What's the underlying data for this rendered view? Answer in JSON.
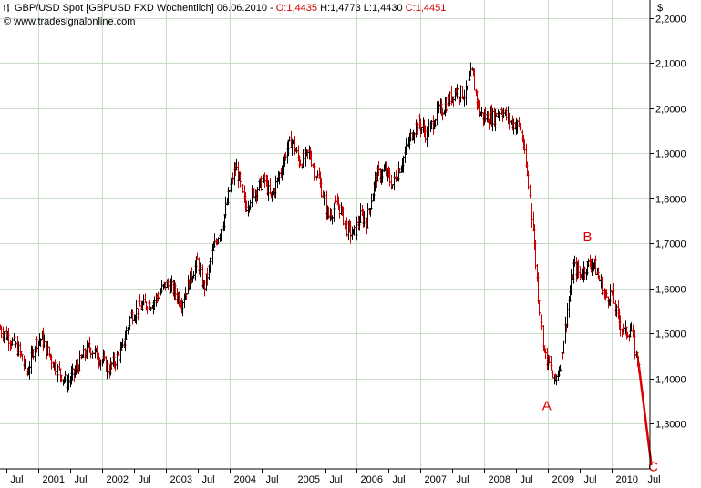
{
  "header": {
    "symbol": "GBP/USD Spot [GBPUSD FXD  Wöchentlich] 06.06.2010 -",
    "open": "O:1,4435",
    "high": "H:1,4773",
    "low": "L:1,4430",
    "close": "C:1,4451",
    "copyright": "© www.tradesignalonline.com"
  },
  "colors": {
    "up": "#000000",
    "down": "#cc0000",
    "grid": "#c8dcc8",
    "annotation": "#e00000",
    "axis": "#000000"
  },
  "chart_data": {
    "type": "ohlc",
    "currency_label": "$",
    "ylim": [
      1.2,
      2.24
    ],
    "yticks": [
      1.3,
      1.4,
      1.5,
      1.6,
      1.7,
      1.8,
      1.9,
      2.0,
      2.1,
      2.2
    ],
    "ytick_labels": [
      "1,3000",
      "1,4000",
      "1,5000",
      "1,6000",
      "1,7000",
      "1,8000",
      "1,9000",
      "2,0000",
      "2,1000",
      "2,2000"
    ],
    "xlim": [
      2000.4,
      2010.6
    ],
    "xticks": [
      {
        "t": 2000.5,
        "label": "Jul"
      },
      {
        "t": 2001.0,
        "label": "2001"
      },
      {
        "t": 2001.5,
        "label": "Jul"
      },
      {
        "t": 2002.0,
        "label": "2002"
      },
      {
        "t": 2002.5,
        "label": "Jul"
      },
      {
        "t": 2003.0,
        "label": "2003"
      },
      {
        "t": 2003.5,
        "label": "Jul"
      },
      {
        "t": 2004.0,
        "label": "2004"
      },
      {
        "t": 2004.5,
        "label": "Jul"
      },
      {
        "t": 2005.0,
        "label": "2005"
      },
      {
        "t": 2005.5,
        "label": "Jul"
      },
      {
        "t": 2006.0,
        "label": "2006"
      },
      {
        "t": 2006.5,
        "label": "Jul"
      },
      {
        "t": 2007.0,
        "label": "2007"
      },
      {
        "t": 2007.5,
        "label": "Jul"
      },
      {
        "t": 2008.0,
        "label": "2008"
      },
      {
        "t": 2008.5,
        "label": "Jul"
      },
      {
        "t": 2009.0,
        "label": "2009"
      },
      {
        "t": 2009.5,
        "label": "Jul"
      },
      {
        "t": 2010.0,
        "label": "2010"
      },
      {
        "t": 2010.5,
        "label": "Jul"
      }
    ],
    "price_path": [
      [
        2000.4,
        1.51
      ],
      [
        2000.55,
        1.49
      ],
      [
        2000.7,
        1.46
      ],
      [
        2000.82,
        1.41
      ],
      [
        2000.95,
        1.48
      ],
      [
        2001.05,
        1.49
      ],
      [
        2001.25,
        1.43
      ],
      [
        2001.45,
        1.39
      ],
      [
        2001.55,
        1.41
      ],
      [
        2001.7,
        1.45
      ],
      [
        2001.8,
        1.47
      ],
      [
        2002.0,
        1.44
      ],
      [
        2002.1,
        1.42
      ],
      [
        2002.3,
        1.46
      ],
      [
        2002.45,
        1.54
      ],
      [
        2002.6,
        1.56
      ],
      [
        2002.8,
        1.57
      ],
      [
        2003.0,
        1.61
      ],
      [
        2003.1,
        1.6
      ],
      [
        2003.25,
        1.57
      ],
      [
        2003.4,
        1.63
      ],
      [
        2003.5,
        1.66
      ],
      [
        2003.6,
        1.6
      ],
      [
        2003.75,
        1.69
      ],
      [
        2003.9,
        1.75
      ],
      [
        2004.0,
        1.82
      ],
      [
        2004.1,
        1.87
      ],
      [
        2004.25,
        1.78
      ],
      [
        2004.35,
        1.81
      ],
      [
        2004.55,
        1.84
      ],
      [
        2004.65,
        1.8
      ],
      [
        2004.8,
        1.86
      ],
      [
        2004.9,
        1.91
      ],
      [
        2004.97,
        1.93
      ],
      [
        2005.1,
        1.88
      ],
      [
        2005.25,
        1.9
      ],
      [
        2005.4,
        1.84
      ],
      [
        2005.55,
        1.76
      ],
      [
        2005.7,
        1.79
      ],
      [
        2005.85,
        1.73
      ],
      [
        2005.95,
        1.72
      ],
      [
        2006.05,
        1.76
      ],
      [
        2006.15,
        1.75
      ],
      [
        2006.3,
        1.85
      ],
      [
        2006.45,
        1.86
      ],
      [
        2006.55,
        1.83
      ],
      [
        2006.7,
        1.88
      ],
      [
        2006.85,
        1.94
      ],
      [
        2006.95,
        1.97
      ],
      [
        2007.1,
        1.94
      ],
      [
        2007.25,
        1.99
      ],
      [
        2007.35,
        2.0
      ],
      [
        2007.45,
        2.02
      ],
      [
        2007.55,
        2.04
      ],
      [
        2007.7,
        2.03
      ],
      [
        2007.8,
        2.08
      ],
      [
        2007.92,
        1.99
      ],
      [
        2008.0,
        1.98
      ],
      [
        2008.15,
        1.98
      ],
      [
        2008.25,
        2.0
      ],
      [
        2008.4,
        1.97
      ],
      [
        2008.55,
        1.96
      ],
      [
        2008.6,
        1.93
      ],
      [
        2008.65,
        1.87
      ],
      [
        2008.75,
        1.76
      ],
      [
        2008.85,
        1.57
      ],
      [
        2008.95,
        1.45
      ],
      [
        2009.02,
        1.43
      ],
      [
        2009.1,
        1.39
      ],
      [
        2009.2,
        1.44
      ],
      [
        2009.3,
        1.55
      ],
      [
        2009.4,
        1.65
      ],
      [
        2009.5,
        1.63
      ],
      [
        2009.6,
        1.65
      ],
      [
        2009.7,
        1.66
      ],
      [
        2009.8,
        1.62
      ],
      [
        2009.9,
        1.58
      ],
      [
        2010.0,
        1.59
      ],
      [
        2010.1,
        1.53
      ],
      [
        2010.2,
        1.5
      ],
      [
        2010.3,
        1.51
      ],
      [
        2010.38,
        1.45
      ],
      [
        2010.42,
        1.44
      ]
    ],
    "wave_line": {
      "from": [
        2010.42,
        1.435
      ],
      "to": [
        2010.62,
        1.21
      ],
      "color": "#e00000"
    },
    "annotations": [
      {
        "text": "A",
        "t": 2008.98,
        "y": 1.33
      },
      {
        "text": "B",
        "t": 2009.62,
        "y": 1.705
      },
      {
        "text": "C",
        "t": 2010.65,
        "y": 1.195
      }
    ]
  }
}
